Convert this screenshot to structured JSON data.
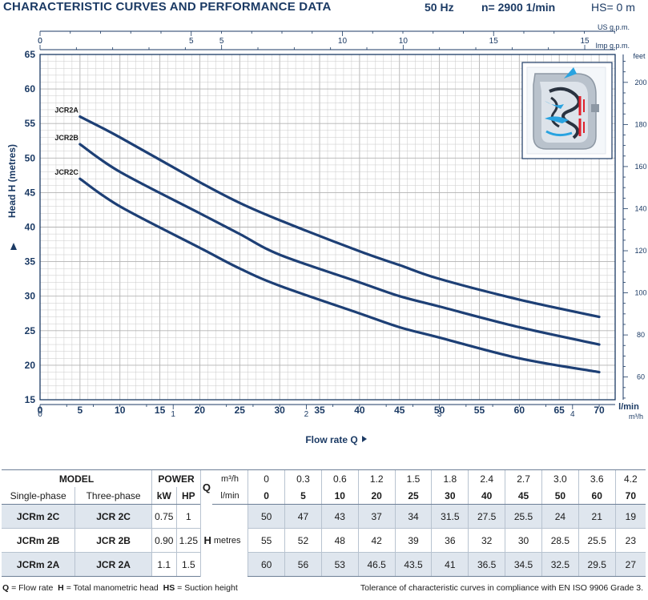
{
  "header": {
    "title": "CHARACTERISTIC CURVES AND PERFORMANCE DATA",
    "frequency": "50 Hz",
    "speed": "n= 2900  1/min",
    "suction": "HS= 0 m"
  },
  "colors": {
    "curve": "#1d3f75",
    "grid": "#c9c9c9",
    "text": "#1b3a64",
    "shade": "#dfe6ee"
  },
  "chart_data": {
    "type": "line",
    "title": "CHARACTERISTIC CURVES AND PERFORMANCE DATA",
    "ylabel": "Head H (metres)",
    "xlabel": "Flow rate  Q",
    "ylim": [
      15,
      65
    ],
    "xlim": [
      0,
      72
    ],
    "y_ticks": [
      15,
      20,
      25,
      30,
      35,
      40,
      45,
      50,
      55,
      60,
      65
    ],
    "x_ticks": [
      0,
      5,
      10,
      15,
      20,
      25,
      30,
      35,
      40,
      45,
      50,
      55,
      60,
      65,
      70
    ],
    "x_unit": "l/min",
    "us_gpm": {
      "label": "US g.p.m.",
      "ticks": [
        0,
        5,
        10,
        15
      ]
    },
    "imp_gpm": {
      "label": "Imp g.p.m.",
      "ticks": [
        0,
        5,
        10,
        15
      ]
    },
    "m3h": {
      "label": "m³/h",
      "ticks": [
        0,
        1,
        2,
        3,
        4
      ]
    },
    "feet": {
      "label": "feet",
      "ticks": [
        60,
        80,
        100,
        120,
        140,
        160,
        180,
        200
      ]
    },
    "grid": true,
    "series": [
      {
        "name": "JCR2A",
        "x": [
          5,
          10,
          20,
          25,
          30,
          40,
          45,
          50,
          60,
          70
        ],
        "values": [
          56,
          53,
          46.5,
          43.5,
          41,
          36.5,
          34.5,
          32.5,
          29.5,
          27
        ]
      },
      {
        "name": "JCR2B",
        "x": [
          5,
          10,
          20,
          25,
          30,
          40,
          45,
          50,
          60,
          70
        ],
        "values": [
          52,
          48,
          42,
          39,
          36,
          32,
          30,
          28.5,
          25.5,
          23
        ]
      },
      {
        "name": "JCR2C",
        "x": [
          5,
          10,
          20,
          25,
          30,
          40,
          45,
          50,
          60,
          70
        ],
        "values": [
          47,
          43,
          37,
          34,
          31.5,
          27.5,
          25.5,
          24,
          21,
          19
        ]
      }
    ]
  },
  "table": {
    "model_label": "MODEL",
    "power_label": "POWER",
    "single_phase": "Single-phase",
    "three_phase": "Three-phase",
    "kw": "kW",
    "hp": "HP",
    "q_label": "Q",
    "m3h_unit": "m³/h",
    "lmin_unit": "l/min",
    "h_label": "H",
    "h_unit": "metres",
    "q_m3h": [
      "0",
      "0.3",
      "0.6",
      "1.2",
      "1.5",
      "1.8",
      "2.4",
      "2.7",
      "3.0",
      "3.6",
      "4.2"
    ],
    "q_lmin": [
      "0",
      "5",
      "10",
      "20",
      "25",
      "30",
      "40",
      "45",
      "50",
      "60",
      "70"
    ],
    "rows": [
      {
        "single": "JCRm 2C",
        "three": "JCR 2C",
        "kw": "0.75",
        "hp": "1",
        "heads": [
          "50",
          "47",
          "43",
          "37",
          "34",
          "31.5",
          "27.5",
          "25.5",
          "24",
          "21",
          "19"
        ]
      },
      {
        "single": "JCRm 2B",
        "three": "JCR 2B",
        "kw": "0.90",
        "hp": "1.25",
        "heads": [
          "55",
          "52",
          "48",
          "42",
          "39",
          "36",
          "32",
          "30",
          "28.5",
          "25.5",
          "23"
        ]
      },
      {
        "single": "JCRm 2A",
        "three": "JCR 2A",
        "kw": "1.1",
        "hp": "1.5",
        "heads": [
          "60",
          "56",
          "53",
          "46.5",
          "43.5",
          "41",
          "36.5",
          "34.5",
          "32.5",
          "29.5",
          "27"
        ]
      }
    ]
  },
  "footer": {
    "q_abbr": "Q",
    "q_desc": "= Flow rate",
    "h_abbr": "H",
    "h_desc": "= Total manometric head",
    "hs_abbr": "HS",
    "hs_desc": "= Suction height",
    "tolerance": "Tolerance of characteristic curves in compliance with EN ISO 9906 Grade 3."
  }
}
